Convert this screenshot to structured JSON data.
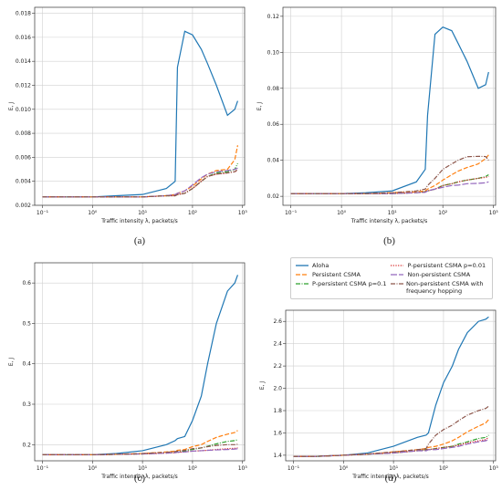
{
  "chart_data": [
    {
      "type": "line",
      "caption": "(a)",
      "x_label": "Traffic intensity λ, packets/s",
      "y_label": "E, J",
      "log_x": true,
      "grid": true,
      "x": [
        0.1,
        0.3,
        1,
        3,
        10,
        30,
        45,
        50,
        70,
        100,
        150,
        200,
        300,
        500,
        700,
        800
      ],
      "xlim": [
        0.07,
        1100
      ],
      "xticks": [
        {
          "value": 0.1,
          "label": "10⁻¹"
        },
        {
          "value": 1,
          "label": "10⁰"
        },
        {
          "value": 10,
          "label": "10¹"
        },
        {
          "value": 100,
          "label": "10²"
        },
        {
          "value": 1000,
          "label": "10³"
        }
      ],
      "ylim": [
        0.002,
        0.0185
      ],
      "yticks": [
        0.002,
        0.004,
        0.006,
        0.008,
        {
          "value": 0.01,
          "label": "0.010"
        },
        0.012,
        0.014,
        0.016,
        0.018
      ],
      "series": [
        {
          "color": "#1f77b4",
          "dash": "solid",
          "values": [
            0.0027,
            0.0027,
            0.0027,
            0.0028,
            0.0029,
            0.0034,
            0.004,
            0.0135,
            0.0165,
            0.0162,
            0.015,
            0.0138,
            0.012,
            0.0095,
            0.01,
            0.0107
          ]
        },
        {
          "color": "#ff7f0e",
          "dash": "dashed",
          "values": [
            0.0027,
            0.0027,
            0.0027,
            0.0027,
            0.0027,
            0.0028,
            0.0029,
            0.003,
            0.0032,
            0.0036,
            0.0042,
            0.0046,
            0.0049,
            0.005,
            0.0058,
            0.007
          ]
        },
        {
          "color": "#2ca02c",
          "dash": "dashdot",
          "values": [
            0.0027,
            0.0027,
            0.0027,
            0.0027,
            0.0027,
            0.0028,
            0.0028,
            0.0029,
            0.003,
            0.0034,
            0.004,
            0.0044,
            0.0047,
            0.0048,
            0.005,
            0.0055
          ]
        },
        {
          "color": "#d62728",
          "dash": "dotted",
          "values": [
            0.0027,
            0.0027,
            0.0027,
            0.0027,
            0.0027,
            0.0028,
            0.0028,
            0.0029,
            0.003,
            0.0034,
            0.004,
            0.0044,
            0.0046,
            0.0047,
            0.0048,
            0.0049
          ]
        },
        {
          "color": "#9467bd",
          "dash": "longdash",
          "values": [
            0.0027,
            0.0027,
            0.0027,
            0.0027,
            0.0027,
            0.0028,
            0.0029,
            0.003,
            0.0032,
            0.0037,
            0.0043,
            0.0046,
            0.0048,
            0.0049,
            0.005,
            0.0051
          ]
        },
        {
          "color": "#8c564b",
          "dash": "dashdot",
          "values": [
            0.0027,
            0.0027,
            0.0027,
            0.0027,
            0.0027,
            0.0028,
            0.0028,
            0.0029,
            0.003,
            0.0034,
            0.004,
            0.0044,
            0.0046,
            0.0047,
            0.0048,
            0.005
          ]
        }
      ]
    },
    {
      "type": "line",
      "caption": "(b)",
      "x_label": "Traffic intensity λ, packets/s",
      "y_label": "E, J",
      "log_x": true,
      "grid": true,
      "x": [
        0.1,
        0.3,
        1,
        3,
        10,
        30,
        45,
        50,
        70,
        100,
        150,
        200,
        300,
        500,
        700,
        800
      ],
      "xlim": [
        0.07,
        1100
      ],
      "xticks": [
        {
          "value": 0.1,
          "label": "10⁻¹"
        },
        {
          "value": 1,
          "label": "10⁰"
        },
        {
          "value": 10,
          "label": "10¹"
        },
        {
          "value": 100,
          "label": "10²"
        },
        {
          "value": 1000,
          "label": "10³"
        }
      ],
      "ylim": [
        0.015,
        0.125
      ],
      "yticks": [
        0.02,
        0.04,
        0.06,
        0.08,
        {
          "value": 0.1,
          "label": "0.10"
        },
        0.12
      ],
      "series": [
        {
          "color": "#1f77b4",
          "dash": "solid",
          "values": [
            0.0215,
            0.0215,
            0.0215,
            0.022,
            0.023,
            0.028,
            0.035,
            0.065,
            0.11,
            0.114,
            0.112,
            0.105,
            0.095,
            0.08,
            0.082,
            0.089
          ]
        },
        {
          "color": "#ff7f0e",
          "dash": "dashed",
          "values": [
            0.0215,
            0.0215,
            0.0215,
            0.0215,
            0.022,
            0.0225,
            0.023,
            0.024,
            0.026,
            0.029,
            0.032,
            0.034,
            0.036,
            0.038,
            0.041,
            0.043
          ]
        },
        {
          "color": "#2ca02c",
          "dash": "dashdot",
          "values": [
            0.0215,
            0.0215,
            0.0215,
            0.0215,
            0.0215,
            0.022,
            0.0225,
            0.023,
            0.024,
            0.026,
            0.027,
            0.028,
            0.029,
            0.03,
            0.031,
            0.032
          ]
        },
        {
          "color": "#d62728",
          "dash": "dotted",
          "values": [
            0.0215,
            0.0215,
            0.0215,
            0.0215,
            0.0215,
            0.022,
            0.0225,
            0.023,
            0.024,
            0.026,
            0.027,
            0.028,
            0.029,
            0.03,
            0.0305,
            0.031
          ]
        },
        {
          "color": "#9467bd",
          "dash": "longdash",
          "values": [
            0.0215,
            0.0215,
            0.0215,
            0.0215,
            0.0215,
            0.022,
            0.0222,
            0.023,
            0.024,
            0.025,
            0.026,
            0.0262,
            0.027,
            0.0272,
            0.0275,
            0.028
          ]
        },
        {
          "color": "#8c564b",
          "dash": "dashdot",
          "values": [
            0.0215,
            0.0215,
            0.0215,
            0.0215,
            0.022,
            0.023,
            0.024,
            0.026,
            0.03,
            0.035,
            0.038,
            0.04,
            0.042,
            0.0422,
            0.0421,
            0.04
          ]
        }
      ]
    },
    {
      "type": "line",
      "caption": "(c)",
      "x_label": "Traffic intensity λ, packets/s",
      "y_label": "E, J",
      "log_x": true,
      "grid": true,
      "x": [
        0.1,
        0.3,
        1,
        3,
        10,
        30,
        45,
        50,
        70,
        100,
        150,
        200,
        300,
        500,
        700,
        800
      ],
      "xlim": [
        0.07,
        1100
      ],
      "xticks": [
        {
          "value": 0.1,
          "label": "10⁻¹"
        },
        {
          "value": 1,
          "label": "10⁰"
        },
        {
          "value": 10,
          "label": "10¹"
        },
        {
          "value": 100,
          "label": "10²"
        },
        {
          "value": 1000,
          "label": "10³"
        }
      ],
      "ylim": [
        0.16,
        0.65
      ],
      "yticks": [
        0.2,
        0.3,
        0.4,
        0.5,
        0.6
      ],
      "series": [
        {
          "color": "#1f77b4",
          "dash": "solid",
          "values": [
            0.175,
            0.175,
            0.175,
            0.178,
            0.185,
            0.2,
            0.21,
            0.215,
            0.22,
            0.26,
            0.32,
            0.4,
            0.5,
            0.58,
            0.6,
            0.62
          ]
        },
        {
          "color": "#ff7f0e",
          "dash": "dashed",
          "values": [
            0.175,
            0.175,
            0.175,
            0.176,
            0.178,
            0.182,
            0.184,
            0.186,
            0.188,
            0.195,
            0.2,
            0.208,
            0.218,
            0.226,
            0.23,
            0.235
          ]
        },
        {
          "color": "#2ca02c",
          "dash": "dashdot",
          "values": [
            0.175,
            0.175,
            0.175,
            0.176,
            0.177,
            0.18,
            0.181,
            0.182,
            0.184,
            0.188,
            0.192,
            0.196,
            0.202,
            0.208,
            0.21,
            0.212
          ]
        },
        {
          "color": "#d62728",
          "dash": "dotted",
          "values": [
            0.175,
            0.175,
            0.175,
            0.176,
            0.177,
            0.179,
            0.18,
            0.181,
            0.182,
            0.184,
            0.185,
            0.186,
            0.188,
            0.19,
            0.191,
            0.192
          ]
        },
        {
          "color": "#9467bd",
          "dash": "longdash",
          "values": [
            0.175,
            0.175,
            0.175,
            0.176,
            0.177,
            0.179,
            0.18,
            0.181,
            0.182,
            0.184,
            0.185,
            0.186,
            0.187,
            0.188,
            0.189,
            0.19
          ]
        },
        {
          "color": "#8c564b",
          "dash": "dashdot",
          "values": [
            0.175,
            0.175,
            0.175,
            0.176,
            0.178,
            0.181,
            0.183,
            0.184,
            0.186,
            0.19,
            0.192,
            0.195,
            0.198,
            0.2,
            0.2,
            0.201
          ]
        }
      ]
    },
    {
      "type": "line",
      "caption": "(d)",
      "x_label": "Traffic intensity λ, packets/s",
      "y_label": "E, J",
      "log_x": true,
      "grid": true,
      "legend": "top",
      "x": [
        0.1,
        0.3,
        1,
        3,
        10,
        30,
        45,
        50,
        70,
        100,
        150,
        200,
        300,
        500,
        700,
        800
      ],
      "xlim": [
        0.07,
        1100
      ],
      "xticks": [
        {
          "value": 0.1,
          "label": "10⁻¹"
        },
        {
          "value": 1,
          "label": "10⁰"
        },
        {
          "value": 10,
          "label": "10¹"
        },
        {
          "value": 100,
          "label": "10²"
        },
        {
          "value": 1000,
          "label": "10³"
        }
      ],
      "ylim": [
        1.35,
        2.7
      ],
      "yticks": [
        1.4,
        1.6,
        1.8,
        {
          "value": 2,
          "label": "2.0"
        },
        2.2,
        2.4,
        2.6
      ],
      "series": [
        {
          "name": "Aloha",
          "color": "#1f77b4",
          "dash": "solid",
          "values": [
            1.39,
            1.39,
            1.4,
            1.42,
            1.48,
            1.56,
            1.58,
            1.6,
            1.85,
            2.05,
            2.2,
            2.35,
            2.5,
            2.6,
            2.62,
            2.64
          ]
        },
        {
          "name": "Persistent CSMA",
          "color": "#ff7f0e",
          "dash": "dashed",
          "values": [
            1.39,
            1.39,
            1.4,
            1.41,
            1.43,
            1.45,
            1.46,
            1.47,
            1.48,
            1.5,
            1.53,
            1.56,
            1.61,
            1.66,
            1.69,
            1.72
          ]
        },
        {
          "name": "P-persistent CSMA p=0.1",
          "color": "#2ca02c",
          "dash": "dashdot",
          "values": [
            1.39,
            1.39,
            1.4,
            1.41,
            1.42,
            1.44,
            1.45,
            1.45,
            1.46,
            1.47,
            1.48,
            1.5,
            1.52,
            1.55,
            1.56,
            1.58
          ]
        },
        {
          "name": "P-persistent CSMA p=0.01",
          "color": "#d62728",
          "dash": "dotted",
          "values": [
            1.39,
            1.39,
            1.4,
            1.41,
            1.42,
            1.44,
            1.45,
            1.45,
            1.46,
            1.47,
            1.48,
            1.49,
            1.51,
            1.53,
            1.54,
            1.56
          ]
        },
        {
          "name": "Non-persistent CSMA",
          "color": "#9467bd",
          "dash": "longdash",
          "values": [
            1.39,
            1.39,
            1.4,
            1.41,
            1.42,
            1.44,
            1.44,
            1.45,
            1.45,
            1.46,
            1.47,
            1.48,
            1.5,
            1.52,
            1.53,
            1.54
          ]
        },
        {
          "name": "Non-persistent CSMA with frequency hopping",
          "color": "#8c564b",
          "dash": "dashdot",
          "values": [
            1.39,
            1.39,
            1.4,
            1.41,
            1.43,
            1.45,
            1.46,
            1.5,
            1.58,
            1.63,
            1.67,
            1.71,
            1.76,
            1.8,
            1.82,
            1.84
          ]
        }
      ]
    }
  ]
}
